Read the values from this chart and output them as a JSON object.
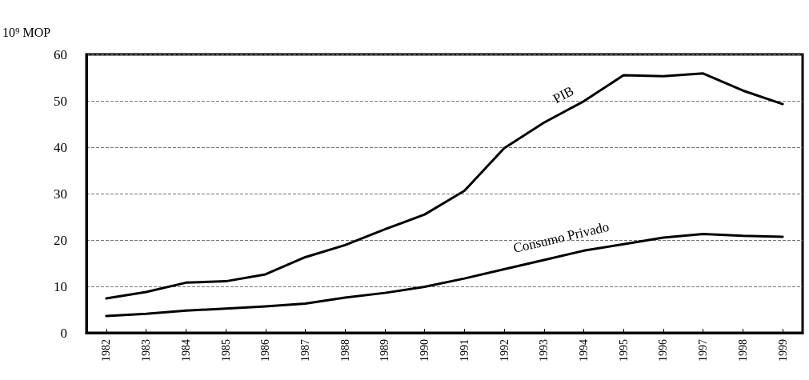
{
  "chart_data": {
    "type": "line",
    "ylabel": "10⁹ MOP",
    "categories": [
      "1982",
      "1983",
      "1984",
      "1985",
      "1986",
      "1987",
      "1988",
      "1989",
      "1990",
      "1991",
      "1992",
      "1993",
      "1994",
      "1995",
      "1996",
      "1997",
      "1998",
      "1999"
    ],
    "series": [
      {
        "name": "PIB",
        "color": "#000000",
        "values": [
          7.4,
          8.8,
          10.8,
          11.1,
          12.6,
          16.3,
          18.9,
          22.3,
          25.5,
          30.6,
          39.8,
          45.3,
          49.9,
          55.5,
          55.3,
          55.9,
          52.2,
          49.3
        ]
      },
      {
        "name": "Consumo Privado",
        "color": "#000000",
        "values": [
          3.6,
          4.1,
          4.8,
          5.2,
          5.7,
          6.3,
          7.6,
          8.6,
          9.9,
          11.7,
          13.7,
          15.7,
          17.7,
          19.1,
          20.5,
          21.3,
          20.9,
          20.7
        ]
      }
    ],
    "ylim": [
      0,
      60
    ],
    "yticks": [
      0,
      10,
      20,
      30,
      40,
      50,
      60
    ],
    "grid": "y",
    "legend": false,
    "marker": "none",
    "line_style": "solid"
  }
}
